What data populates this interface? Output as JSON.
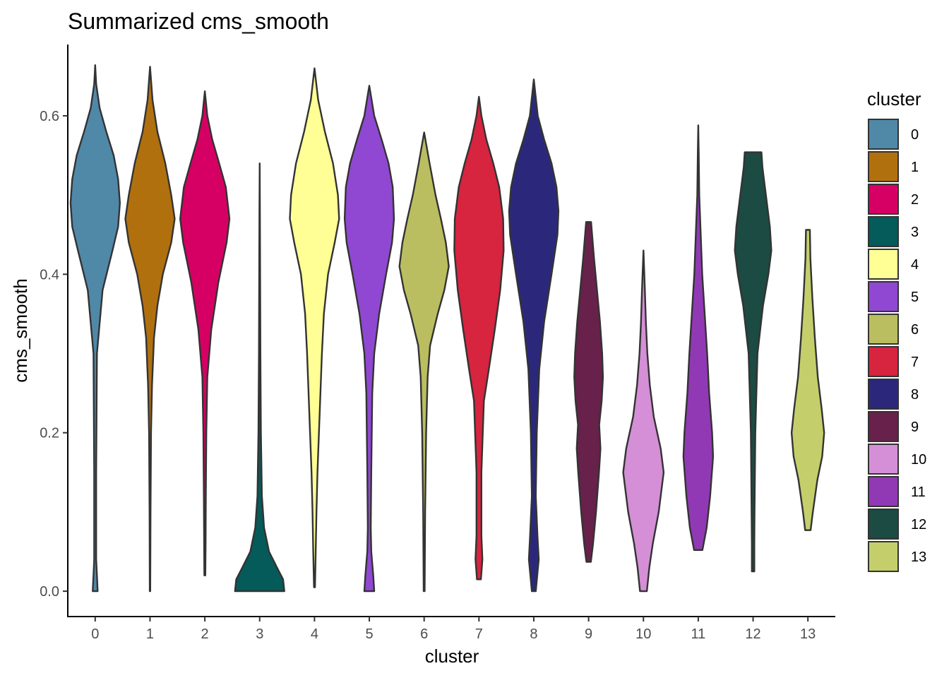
{
  "chart_data": {
    "type": "violin",
    "title": "Summarized cms_smooth",
    "xlabel": "cluster",
    "ylabel": "cms_smooth",
    "categories": [
      "0",
      "1",
      "2",
      "3",
      "4",
      "5",
      "6",
      "7",
      "8",
      "9",
      "10",
      "11",
      "12",
      "13"
    ],
    "ylim": [
      -0.032,
      0.69
    ],
    "yticks": [
      0.0,
      0.2,
      0.4,
      0.6
    ],
    "ytick_labels": [
      "0.0",
      "0.2",
      "0.4",
      "0.6"
    ],
    "legend": {
      "title": "cluster",
      "position": "right"
    },
    "colors": [
      "#5088A8",
      "#B1700E",
      "#D60064",
      "#055A5A",
      "#FFFF95",
      "#9048D2",
      "#BABE60",
      "#D7243F",
      "#2B287C",
      "#68214B",
      "#D48FD6",
      "#9139B4",
      "#1B4B42",
      "#C4CF6B"
    ],
    "series": [
      {
        "name": "0",
        "min": 0.0,
        "max": 0.664,
        "profile": [
          [
            0.0,
            0.1
          ],
          [
            0.02,
            0.07
          ],
          [
            0.04,
            0.04
          ],
          [
            0.07,
            0.04
          ],
          [
            0.15,
            0.04
          ],
          [
            0.3,
            0.07
          ],
          [
            0.38,
            0.3
          ],
          [
            0.43,
            0.7
          ],
          [
            0.46,
            0.93
          ],
          [
            0.49,
            1.0
          ],
          [
            0.52,
            0.93
          ],
          [
            0.55,
            0.75
          ],
          [
            0.58,
            0.45
          ],
          [
            0.61,
            0.18
          ],
          [
            0.64,
            0.04
          ],
          [
            0.664,
            0.0
          ]
        ]
      },
      {
        "name": "1",
        "min": 0.0,
        "max": 0.662,
        "profile": [
          [
            0.0,
            0.01
          ],
          [
            0.1,
            0.02
          ],
          [
            0.2,
            0.04
          ],
          [
            0.26,
            0.08
          ],
          [
            0.32,
            0.16
          ],
          [
            0.36,
            0.3
          ],
          [
            0.4,
            0.52
          ],
          [
            0.44,
            0.86
          ],
          [
            0.47,
            1.0
          ],
          [
            0.5,
            0.86
          ],
          [
            0.54,
            0.62
          ],
          [
            0.58,
            0.3
          ],
          [
            0.62,
            0.1
          ],
          [
            0.662,
            0.0
          ]
        ]
      },
      {
        "name": "2",
        "min": 0.02,
        "max": 0.631,
        "profile": [
          [
            0.02,
            0.02
          ],
          [
            0.06,
            0.03
          ],
          [
            0.12,
            0.04
          ],
          [
            0.2,
            0.06
          ],
          [
            0.27,
            0.1
          ],
          [
            0.33,
            0.26
          ],
          [
            0.39,
            0.55
          ],
          [
            0.44,
            0.88
          ],
          [
            0.47,
            1.0
          ],
          [
            0.51,
            0.85
          ],
          [
            0.54,
            0.58
          ],
          [
            0.57,
            0.3
          ],
          [
            0.6,
            0.1
          ],
          [
            0.631,
            0.0
          ]
        ]
      },
      {
        "name": "3",
        "min": 0.0,
        "max": 0.54,
        "profile": [
          [
            0.0,
            1.0
          ],
          [
            0.015,
            0.95
          ],
          [
            0.03,
            0.7
          ],
          [
            0.05,
            0.38
          ],
          [
            0.08,
            0.18
          ],
          [
            0.12,
            0.09
          ],
          [
            0.2,
            0.05
          ],
          [
            0.3,
            0.03
          ],
          [
            0.4,
            0.02
          ],
          [
            0.48,
            0.01
          ],
          [
            0.54,
            0.0
          ]
        ]
      },
      {
        "name": "4",
        "min": 0.005,
        "max": 0.66,
        "profile": [
          [
            0.005,
            0.02
          ],
          [
            0.05,
            0.05
          ],
          [
            0.1,
            0.08
          ],
          [
            0.15,
            0.12
          ],
          [
            0.2,
            0.18
          ],
          [
            0.25,
            0.24
          ],
          [
            0.3,
            0.3
          ],
          [
            0.35,
            0.38
          ],
          [
            0.4,
            0.55
          ],
          [
            0.44,
            0.82
          ],
          [
            0.47,
            1.0
          ],
          [
            0.5,
            0.95
          ],
          [
            0.54,
            0.75
          ],
          [
            0.58,
            0.42
          ],
          [
            0.62,
            0.15
          ],
          [
            0.66,
            0.0
          ]
        ]
      },
      {
        "name": "5",
        "min": 0.0,
        "max": 0.638,
        "profile": [
          [
            0.0,
            0.2
          ],
          [
            0.02,
            0.16
          ],
          [
            0.05,
            0.08
          ],
          [
            0.08,
            0.06
          ],
          [
            0.15,
            0.08
          ],
          [
            0.25,
            0.12
          ],
          [
            0.3,
            0.2
          ],
          [
            0.35,
            0.4
          ],
          [
            0.4,
            0.68
          ],
          [
            0.44,
            0.92
          ],
          [
            0.47,
            1.0
          ],
          [
            0.51,
            0.95
          ],
          [
            0.54,
            0.78
          ],
          [
            0.57,
            0.5
          ],
          [
            0.6,
            0.2
          ],
          [
            0.638,
            0.0
          ]
        ]
      },
      {
        "name": "6",
        "min": 0.0,
        "max": 0.579,
        "profile": [
          [
            0.0,
            0.02
          ],
          [
            0.1,
            0.04
          ],
          [
            0.2,
            0.08
          ],
          [
            0.27,
            0.14
          ],
          [
            0.31,
            0.24
          ],
          [
            0.35,
            0.55
          ],
          [
            0.38,
            0.82
          ],
          [
            0.41,
            1.0
          ],
          [
            0.44,
            0.88
          ],
          [
            0.47,
            0.68
          ],
          [
            0.5,
            0.46
          ],
          [
            0.54,
            0.22
          ],
          [
            0.579,
            0.0
          ]
        ]
      },
      {
        "name": "7",
        "min": 0.015,
        "max": 0.624,
        "profile": [
          [
            0.015,
            0.08
          ],
          [
            0.04,
            0.14
          ],
          [
            0.07,
            0.1
          ],
          [
            0.15,
            0.1
          ],
          [
            0.24,
            0.2
          ],
          [
            0.28,
            0.4
          ],
          [
            0.33,
            0.64
          ],
          [
            0.38,
            0.86
          ],
          [
            0.43,
            1.0
          ],
          [
            0.47,
            0.98
          ],
          [
            0.51,
            0.82
          ],
          [
            0.54,
            0.58
          ],
          [
            0.57,
            0.3
          ],
          [
            0.6,
            0.1
          ],
          [
            0.624,
            0.0
          ]
        ]
      },
      {
        "name": "8",
        "min": 0.0,
        "max": 0.646,
        "profile": [
          [
            0.0,
            0.08
          ],
          [
            0.04,
            0.2
          ],
          [
            0.07,
            0.15
          ],
          [
            0.12,
            0.08
          ],
          [
            0.2,
            0.12
          ],
          [
            0.28,
            0.22
          ],
          [
            0.34,
            0.42
          ],
          [
            0.4,
            0.72
          ],
          [
            0.45,
            0.96
          ],
          [
            0.48,
            1.0
          ],
          [
            0.51,
            0.92
          ],
          [
            0.54,
            0.72
          ],
          [
            0.57,
            0.42
          ],
          [
            0.6,
            0.16
          ],
          [
            0.646,
            0.0
          ]
        ]
      },
      {
        "name": "9",
        "min": 0.037,
        "max": 0.466,
        "profile": [
          [
            0.037,
            0.09
          ],
          [
            0.06,
            0.18
          ],
          [
            0.1,
            0.3
          ],
          [
            0.15,
            0.42
          ],
          [
            0.18,
            0.48
          ],
          [
            0.21,
            0.43
          ],
          [
            0.24,
            0.53
          ],
          [
            0.27,
            0.58
          ],
          [
            0.3,
            0.55
          ],
          [
            0.34,
            0.46
          ],
          [
            0.38,
            0.34
          ],
          [
            0.42,
            0.22
          ],
          [
            0.466,
            0.1
          ]
        ]
      },
      {
        "name": "10",
        "min": 0.0,
        "max": 0.43,
        "profile": [
          [
            0.0,
            0.14
          ],
          [
            0.03,
            0.24
          ],
          [
            0.06,
            0.38
          ],
          [
            0.1,
            0.62
          ],
          [
            0.15,
            0.82
          ],
          [
            0.18,
            0.7
          ],
          [
            0.22,
            0.42
          ],
          [
            0.26,
            0.26
          ],
          [
            0.3,
            0.16
          ],
          [
            0.34,
            0.1
          ],
          [
            0.38,
            0.06
          ],
          [
            0.43,
            0.0
          ]
        ]
      },
      {
        "name": "11",
        "min": 0.052,
        "max": 0.588,
        "profile": [
          [
            0.052,
            0.17
          ],
          [
            0.08,
            0.34
          ],
          [
            0.12,
            0.48
          ],
          [
            0.17,
            0.6
          ],
          [
            0.2,
            0.56
          ],
          [
            0.25,
            0.44
          ],
          [
            0.3,
            0.36
          ],
          [
            0.35,
            0.26
          ],
          [
            0.4,
            0.16
          ],
          [
            0.45,
            0.1
          ],
          [
            0.5,
            0.04
          ],
          [
            0.55,
            0.02
          ],
          [
            0.588,
            0.0
          ]
        ]
      },
      {
        "name": "12",
        "min": 0.025,
        "max": 0.554,
        "profile": [
          [
            0.025,
            0.05
          ],
          [
            0.06,
            0.05
          ],
          [
            0.1,
            0.06
          ],
          [
            0.2,
            0.09
          ],
          [
            0.3,
            0.18
          ],
          [
            0.36,
            0.4
          ],
          [
            0.4,
            0.62
          ],
          [
            0.43,
            0.74
          ],
          [
            0.46,
            0.68
          ],
          [
            0.5,
            0.52
          ],
          [
            0.535,
            0.38
          ],
          [
            0.554,
            0.34
          ]
        ]
      },
      {
        "name": "13",
        "min": 0.077,
        "max": 0.456,
        "profile": [
          [
            0.077,
            0.11
          ],
          [
            0.1,
            0.2
          ],
          [
            0.14,
            0.38
          ],
          [
            0.17,
            0.58
          ],
          [
            0.2,
            0.66
          ],
          [
            0.23,
            0.56
          ],
          [
            0.27,
            0.4
          ],
          [
            0.32,
            0.28
          ],
          [
            0.37,
            0.18
          ],
          [
            0.42,
            0.1
          ],
          [
            0.456,
            0.08
          ]
        ]
      }
    ]
  }
}
